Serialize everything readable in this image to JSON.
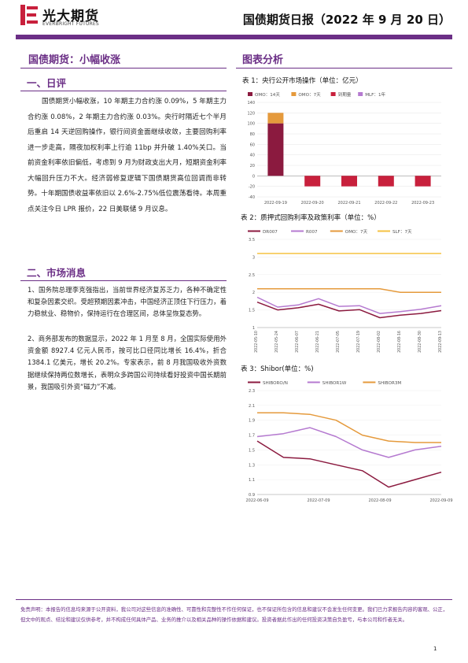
{
  "header": {
    "brand_cn": "光大期货",
    "brand_en": "EVERBRIGHT FUTURES",
    "report_title": "国债期货日报（2022 年 9 月 20 日）"
  },
  "left": {
    "title": "国债期货：小幅收涨",
    "section1_title": "一、日评",
    "section1_text": "国债期货小幅收涨，10 年期主力合约涨 0.09%，5 年期主力合约涨 0.08%，2 年期主力合约涨 0.03%。央行时隔近七个半月后重启 14 天逆回购操作，银行间资金面继续收敛，主要回购利率进一步走高，隔夜加权利率上行逾 11bp 并升破 1.40%关口。当前资金利率依旧偏低，考虑到 9 月为财政支出大月，短期资金利率大幅回升压力不大。经济弱修复逻辑下国债期货高位回调而非转势。十年期国债收益率依旧以 2.6%-2.75%低位震荡看待。本周重点关注今日 LPR 报价，22 日美联储 9 月议息。",
    "section2_title": "二、市场消息",
    "news1": "1、国务院总理李克强指出，当前世界经济复苏乏力，各种不确定性和复杂因素交织。受超预期因素冲击，中国经济正顶住下行压力，着力稳就业、稳物价，保持运行在合理区间，总体呈恢复态势。",
    "news2": "2、商务部发布的数据显示，2022 年 1 月至 8 月，全国实际使用外资金额 8927.4 亿元人民币，按可比口径同比增长 16.4%，折合 1384.1 亿美元，增长 20.2%。专家表示，前 8 月我国吸收外资数据继续保持两位数增长，表明众多跨国公司持续看好投资中国长期前景，我国吸引外资“磁力”不减。"
  },
  "right": {
    "title": "图表分析",
    "chart1_title": "表 1：央行公开市场操作（单位：亿元）",
    "chart2_title": "表 2：质押式回购利率及政策利率（单位：%）",
    "chart3_title": "表 3：Shibor(单位：%)"
  },
  "colors": {
    "accent": "#6b2f86",
    "wine": "#8b1a3f",
    "orange": "#e59a3c",
    "lavender": "#b57ad0",
    "yellow": "#f5c242",
    "red": "#c8203c"
  },
  "chart_data": [
    {
      "type": "bar",
      "categories": [
        "2022-09-19",
        "2022-09-20",
        "2022-09-21",
        "2022-09-22",
        "2022-09-23"
      ],
      "series": [
        {
          "name": "OMO：14天",
          "values": [
            100,
            0,
            0,
            0,
            0
          ]
        },
        {
          "name": "OMO：7天",
          "values": [
            20,
            0,
            0,
            0,
            0
          ]
        },
        {
          "name": "到期量",
          "values": [
            0,
            -20,
            -20,
            -20,
            -20
          ]
        },
        {
          "name": "MLF：1年",
          "values": [
            0,
            0,
            0,
            0,
            0
          ]
        }
      ],
      "stacked": true,
      "ylim": [
        -40,
        140
      ],
      "yticks": [
        -40,
        -20,
        0,
        20,
        40,
        60,
        80,
        100,
        120,
        140
      ],
      "legend": "top"
    },
    {
      "type": "line",
      "x": [
        "2022-05-10",
        "2022-05-24",
        "2022-06-07",
        "2022-06-21",
        "2022-07-05",
        "2022-07-19",
        "2022-08-02",
        "2022-08-16",
        "2022-08-30",
        "2022-09-13"
      ],
      "series": [
        {
          "name": "DR007",
          "values": [
            1.72,
            1.5,
            1.56,
            1.66,
            1.47,
            1.51,
            1.28,
            1.35,
            1.4,
            1.48
          ]
        },
        {
          "name": "R007",
          "values": [
            1.86,
            1.58,
            1.64,
            1.82,
            1.6,
            1.62,
            1.4,
            1.45,
            1.52,
            1.62
          ]
        },
        {
          "name": "OMO：7天",
          "values": [
            2.1,
            2.1,
            2.1,
            2.1,
            2.1,
            2.1,
            2.1,
            2.0,
            2.0,
            2.0
          ]
        },
        {
          "name": "SLF：7天",
          "values": [
            3.1,
            3.1,
            3.1,
            3.1,
            3.1,
            3.1,
            3.1,
            3.1,
            3.1,
            3.1
          ]
        }
      ],
      "ylim": [
        1,
        3.5
      ],
      "yticks": [
        1,
        1.5,
        2,
        2.5,
        3,
        3.5
      ],
      "legend": "top"
    },
    {
      "type": "line",
      "x": [
        "2022-06-09",
        "2022-06-23",
        "2022-07-07",
        "2022-07-21",
        "2022-08-04",
        "2022-08-18",
        "2022-09-01",
        "2022-09-15"
      ],
      "series": [
        {
          "name": "SHIBORO/N",
          "values": [
            1.62,
            1.4,
            1.38,
            1.3,
            1.22,
            1.0,
            1.1,
            1.2
          ]
        },
        {
          "name": "SHIBOR1W",
          "values": [
            1.68,
            1.72,
            1.8,
            1.68,
            1.5,
            1.4,
            1.5,
            1.55
          ]
        },
        {
          "name": "SHIBOR3M",
          "values": [
            2.0,
            2.0,
            1.98,
            1.9,
            1.7,
            1.62,
            1.6,
            1.6
          ]
        }
      ],
      "ylim": [
        0.9,
        2.3
      ],
      "yticks": [
        0.9,
        1.1,
        1.3,
        1.5,
        1.7,
        1.9,
        2.1,
        2.3
      ],
      "x_tick_labels": [
        "2022-06-09",
        "2022-07-09",
        "2022-08-09",
        "2022-09-09"
      ],
      "legend": "top"
    }
  ],
  "footer": {
    "disclaimer": "免责声明：本报告的信息均来源于公开资料，我公司对这些信息的准确性、可靠性和完整性不作任何保证，也不保证所包含的信息和建议不会发生任何变更。我们已力求报告内容的客观、公正，但文中的观点、结论和建议仅供参考，并不构成任何具体产品、业务的推介以及相关品种的操作依据和建议。投资者据此作出的任何投资决策自负盈亏，与本公司和作者无关。",
    "page": "1"
  }
}
